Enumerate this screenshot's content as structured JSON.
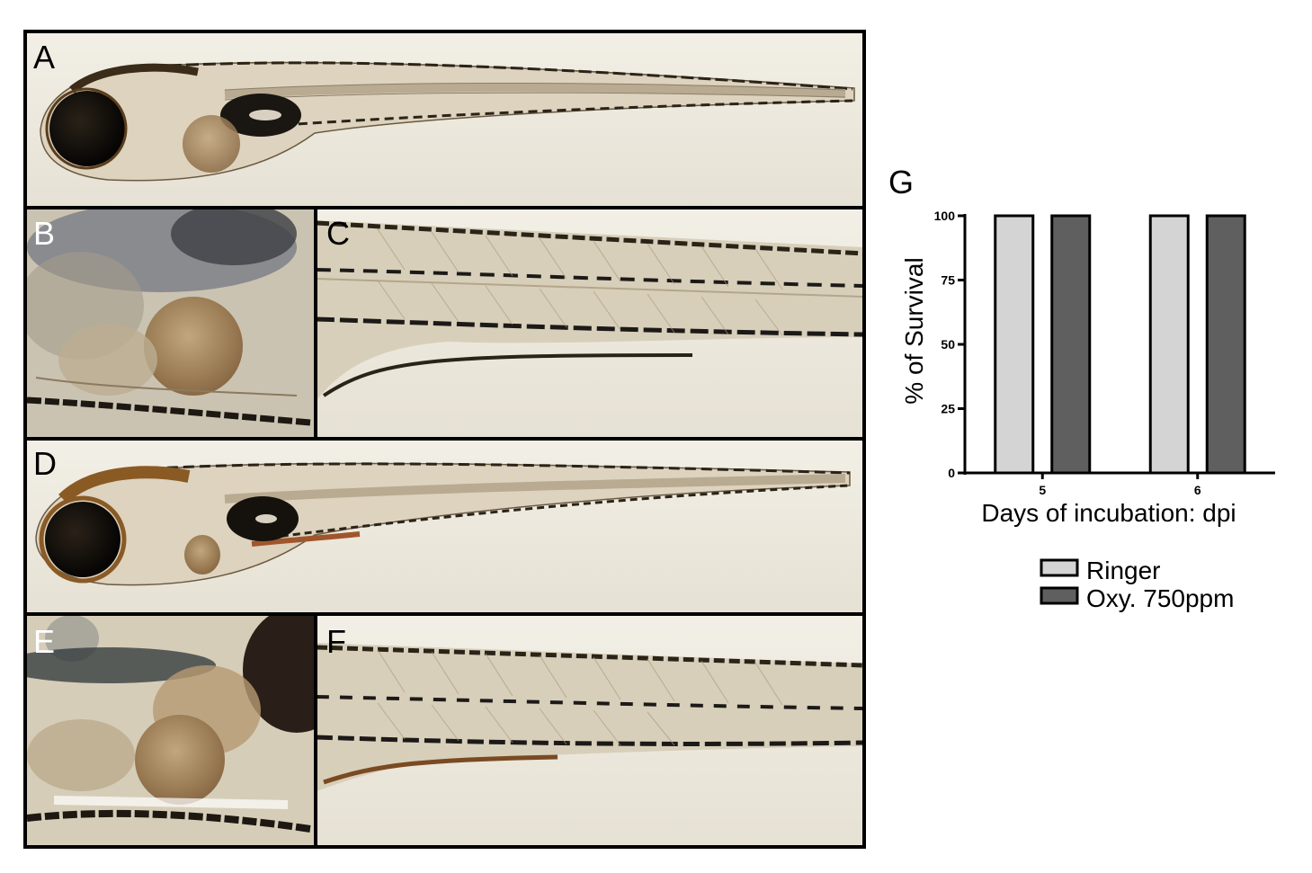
{
  "figure": {
    "panels": [
      {
        "id": "A",
        "label": "A",
        "content": "larva-whole"
      },
      {
        "id": "B",
        "label": "B",
        "content": "head-detail"
      },
      {
        "id": "C",
        "label": "C",
        "content": "trunk-detail"
      },
      {
        "id": "D",
        "label": "D",
        "content": "larva-whole"
      },
      {
        "id": "E",
        "label": "E",
        "content": "head-detail"
      },
      {
        "id": "F",
        "label": "F",
        "content": "trunk-detail"
      }
    ],
    "chart_panel_label": "G"
  },
  "chart_data": {
    "type": "bar",
    "categories": [
      "5",
      "6"
    ],
    "series": [
      {
        "name": "Ringer",
        "values": [
          100,
          100
        ],
        "color": "#d4d4d4"
      },
      {
        "name": "Oxy. 750ppm",
        "values": [
          100,
          100
        ],
        "color": "#5f5f5f"
      }
    ],
    "title": "",
    "xlabel": "Days of incubation: dpi",
    "ylabel": "% of Survival",
    "ylim": [
      0,
      100
    ],
    "yticks": [
      0,
      25,
      50,
      75,
      100
    ],
    "grid": false,
    "legend_position": "bottom"
  },
  "colors": {
    "background": "#ffffff",
    "frame": "#000000",
    "micrograph_bg": "#eeeadd",
    "pigment": "#1e1a14",
    "yolk": "#a08560",
    "tissue": "#d9cfba"
  }
}
